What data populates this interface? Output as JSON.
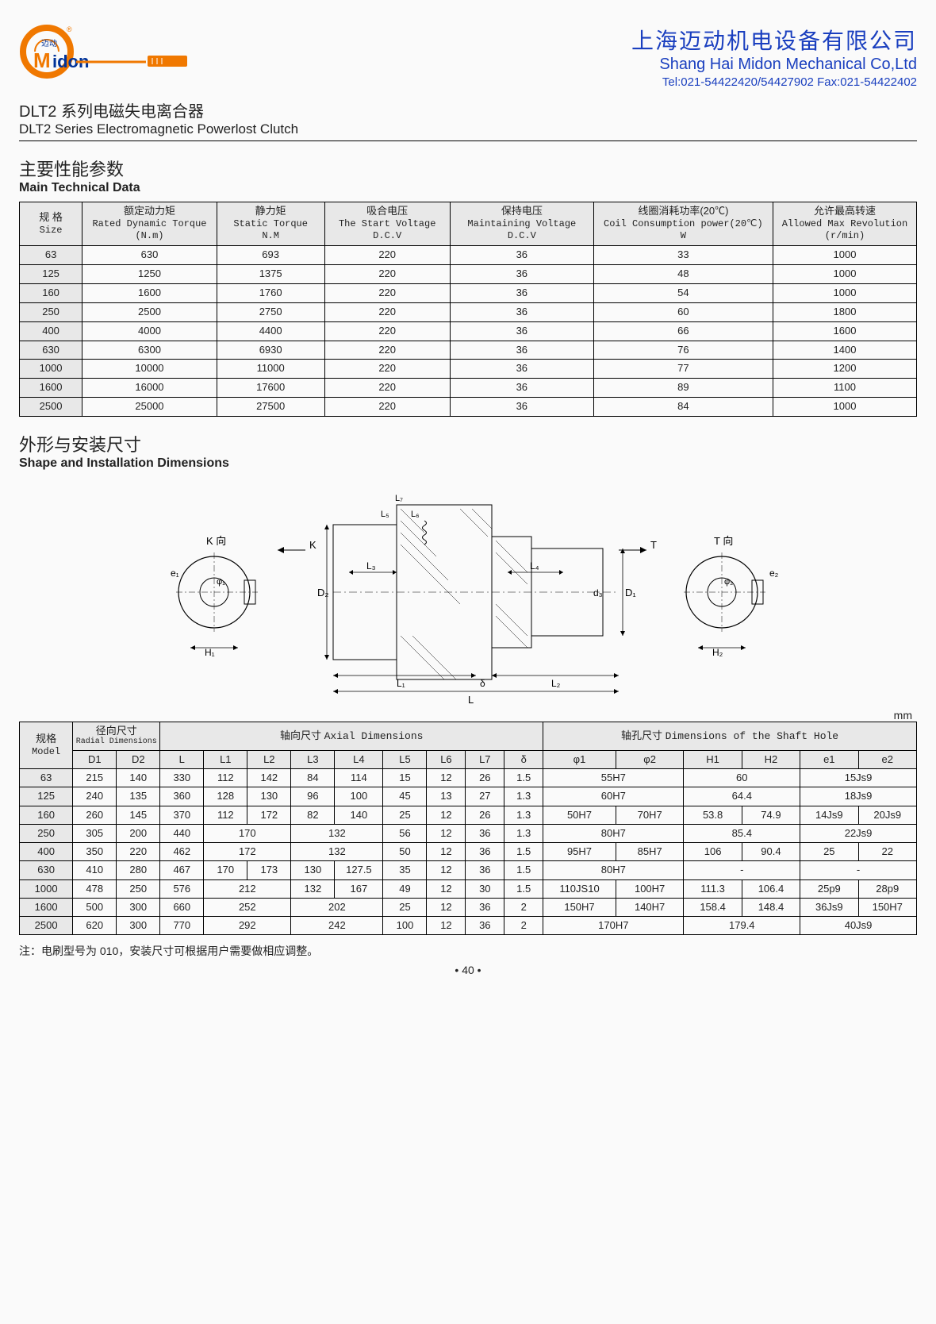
{
  "header": {
    "company_cn": "上海迈动机电设备有限公司",
    "company_en": "Shang Hai Midon Mechanical Co,Ltd",
    "contact": "Tel:021-54422420/54427902 Fax:021-54422402",
    "logo_top_char": "迈动",
    "logo_m": "M",
    "logo_idon": "idon"
  },
  "title": {
    "cn": "DLT2 系列电磁失电离合器",
    "en": "DLT2 Series Electromagnetic Powerlost Clutch"
  },
  "spec_section": {
    "title_cn": "主要性能参数",
    "title_en": "Main Technical Data",
    "columns": [
      {
        "cn": "规 格",
        "en": "Size",
        "unit": ""
      },
      {
        "cn": "额定动力矩",
        "en": "Rated Dynamic Torque",
        "unit": "(N.m)"
      },
      {
        "cn": "静力矩",
        "en": "Static Torque",
        "unit": "N.M"
      },
      {
        "cn": "吸合电压",
        "en": "The Start Voltage",
        "unit": "D.C.V"
      },
      {
        "cn": "保持电压",
        "en": "Maintaining Voltage",
        "unit": "D.C.V"
      },
      {
        "cn": "线圈消耗功率(20℃)",
        "en": "Coil Consumption power(20℃)",
        "unit": "W"
      },
      {
        "cn": "允许最高转速",
        "en": "Allowed Max Revolution",
        "unit": "(r/min)"
      }
    ],
    "col_widths": [
      "7%",
      "15%",
      "12%",
      "14%",
      "16%",
      "20%",
      "16%"
    ],
    "rows": [
      [
        "63",
        "630",
        "693",
        "220",
        "36",
        "33",
        "1000"
      ],
      [
        "125",
        "1250",
        "1375",
        "220",
        "36",
        "48",
        "1000"
      ],
      [
        "160",
        "1600",
        "1760",
        "220",
        "36",
        "54",
        "1000"
      ],
      [
        "250",
        "2500",
        "2750",
        "220",
        "36",
        "60",
        "1800"
      ],
      [
        "400",
        "4000",
        "4400",
        "220",
        "36",
        "66",
        "1600"
      ],
      [
        "630",
        "6300",
        "6930",
        "220",
        "36",
        "76",
        "1400"
      ],
      [
        "1000",
        "10000",
        "11000",
        "220",
        "36",
        "77",
        "1200"
      ],
      [
        "1600",
        "16000",
        "17600",
        "220",
        "36",
        "89",
        "1100"
      ],
      [
        "2500",
        "25000",
        "27500",
        "220",
        "36",
        "84",
        "1000"
      ]
    ]
  },
  "dims_section": {
    "title_cn": "外形与安装尺寸",
    "title_en": "Shape and Installation Dimensions",
    "unit_label": "mm",
    "diagram_labels": {
      "k_dir": "K 向",
      "t_dir": "T 向",
      "K": "K",
      "T": "T",
      "D1": "D₁",
      "D2": "D₂",
      "d3": "d₃",
      "L": "L",
      "L1": "L₁",
      "L2": "L₂",
      "L3": "L₃",
      "L4": "L₄",
      "L5": "L₅",
      "L6": "L₆",
      "L7": "L₇",
      "delta": "δ",
      "phi1": "φ₁",
      "phi2": "φ₂",
      "H1": "H₁",
      "H2": "H₂",
      "e1": "e₁",
      "e2": "e₂"
    },
    "header_groups": {
      "model_cn": "规格",
      "model_en": "Model",
      "radial_cn": "径向尺寸",
      "radial_en": "Radial Dimensions",
      "axial_cn": "轴向尺寸",
      "axial_en": "Axial Dimensions",
      "shaft_cn": "轴孔尺寸",
      "shaft_en": "Dimensions of the Shaft Hole"
    },
    "sub_headers": [
      "D1",
      "D2",
      "L",
      "L1",
      "L2",
      "L3",
      "L4",
      "L5",
      "L6",
      "L7",
      "δ",
      "φ1",
      "φ2",
      "H1",
      "H2",
      "e1",
      "e2"
    ],
    "rows": [
      {
        "model": "63",
        "D1": "215",
        "D2": "140",
        "L": "330",
        "L1": "112",
        "L2": "142",
        "L3": "84",
        "L4": "114",
        "L5": "15",
        "L6": "12",
        "L7": "26",
        "delta": "1.5",
        "phi": {
          "span": 2,
          "val": "55H7"
        },
        "H": {
          "span": 2,
          "val": "60"
        },
        "e": {
          "span": 2,
          "val": "15Js9"
        }
      },
      {
        "model": "125",
        "D1": "240",
        "D2": "135",
        "L": "360",
        "L1": "128",
        "L2": "130",
        "L3": "96",
        "L4": "100",
        "L5": "45",
        "L6": "13",
        "L7": "27",
        "delta": "1.3",
        "phi": {
          "span": 2,
          "val": "60H7"
        },
        "H": {
          "span": 2,
          "val": "64.4"
        },
        "e": {
          "span": 2,
          "val": "18Js9"
        }
      },
      {
        "model": "160",
        "D1": "260",
        "D2": "145",
        "L": "370",
        "L1": "112",
        "L2": "172",
        "L3": "82",
        "L4": "140",
        "L5": "25",
        "L6": "12",
        "L7": "26",
        "delta": "1.3",
        "phi1": "50H7",
        "phi2": "70H7",
        "H1": "53.8",
        "H2": "74.9",
        "e1": "14Js9",
        "e2": "20Js9"
      },
      {
        "model": "250",
        "D1": "305",
        "D2": "200",
        "L": "440",
        "L12": {
          "span": 2,
          "val": "170"
        },
        "L34": {
          "span": 2,
          "val": "132"
        },
        "L5": "56",
        "L6": "12",
        "L7": "36",
        "delta": "1.3",
        "phi": {
          "span": 2,
          "val": "80H7"
        },
        "H": {
          "span": 2,
          "val": "85.4"
        },
        "e": {
          "span": 2,
          "val": "22Js9"
        }
      },
      {
        "model": "400",
        "D1": "350",
        "D2": "220",
        "L": "462",
        "L12": {
          "span": 2,
          "val": "172"
        },
        "L34": {
          "span": 2,
          "val": "132"
        },
        "L5": "50",
        "L6": "12",
        "L7": "36",
        "delta": "1.5",
        "phi1": "95H7",
        "phi2": "85H7",
        "H1": "106",
        "H2": "90.4",
        "e1": "25",
        "e2": "22"
      },
      {
        "model": "630",
        "D1": "410",
        "D2": "280",
        "L": "467",
        "L1": "170",
        "L2": "173",
        "L3": "130",
        "L4": "127.5",
        "L5": "35",
        "L6": "12",
        "L7": "36",
        "delta": "1.5",
        "phi": {
          "span": 2,
          "val": "80H7"
        },
        "H": {
          "span": 2,
          "val": "-"
        },
        "e": {
          "span": 2,
          "val": "-"
        }
      },
      {
        "model": "1000",
        "D1": "478",
        "D2": "250",
        "L": "576",
        "L12": {
          "span": 2,
          "val": "212"
        },
        "L3": "132",
        "L4": "167",
        "L5": "49",
        "L6": "12",
        "L7": "30",
        "delta": "1.5",
        "phi1": "110JS10",
        "phi2": "100H7",
        "H1": "111.3",
        "H2": "106.4",
        "e1": "25p9",
        "e2": "28p9"
      },
      {
        "model": "1600",
        "D1": "500",
        "D2": "300",
        "L": "660",
        "L12": {
          "span": 2,
          "val": "252"
        },
        "L34": {
          "span": 2,
          "val": "202"
        },
        "L5": "25",
        "L6": "12",
        "L7": "36",
        "delta": "2",
        "phi1": "150H7",
        "phi2": "140H7",
        "H1": "158.4",
        "H2": "148.4",
        "e1": "36Js9",
        "e2": "150H7"
      },
      {
        "model": "2500",
        "D1": "620",
        "D2": "300",
        "L": "770",
        "L12": {
          "span": 2,
          "val": "292"
        },
        "L34": {
          "span": 2,
          "val": "242"
        },
        "L5": "100",
        "L6": "12",
        "L7": "36",
        "delta": "2",
        "phi": {
          "span": 2,
          "val": "170H7"
        },
        "H": {
          "span": 2,
          "val": "179.4"
        },
        "e": {
          "span": 2,
          "val": "40Js9"
        }
      }
    ]
  },
  "footnote": "注：电刷型号为 010，安装尺寸可根据用户需要做相应调整。",
  "page_number": "• 40 •"
}
